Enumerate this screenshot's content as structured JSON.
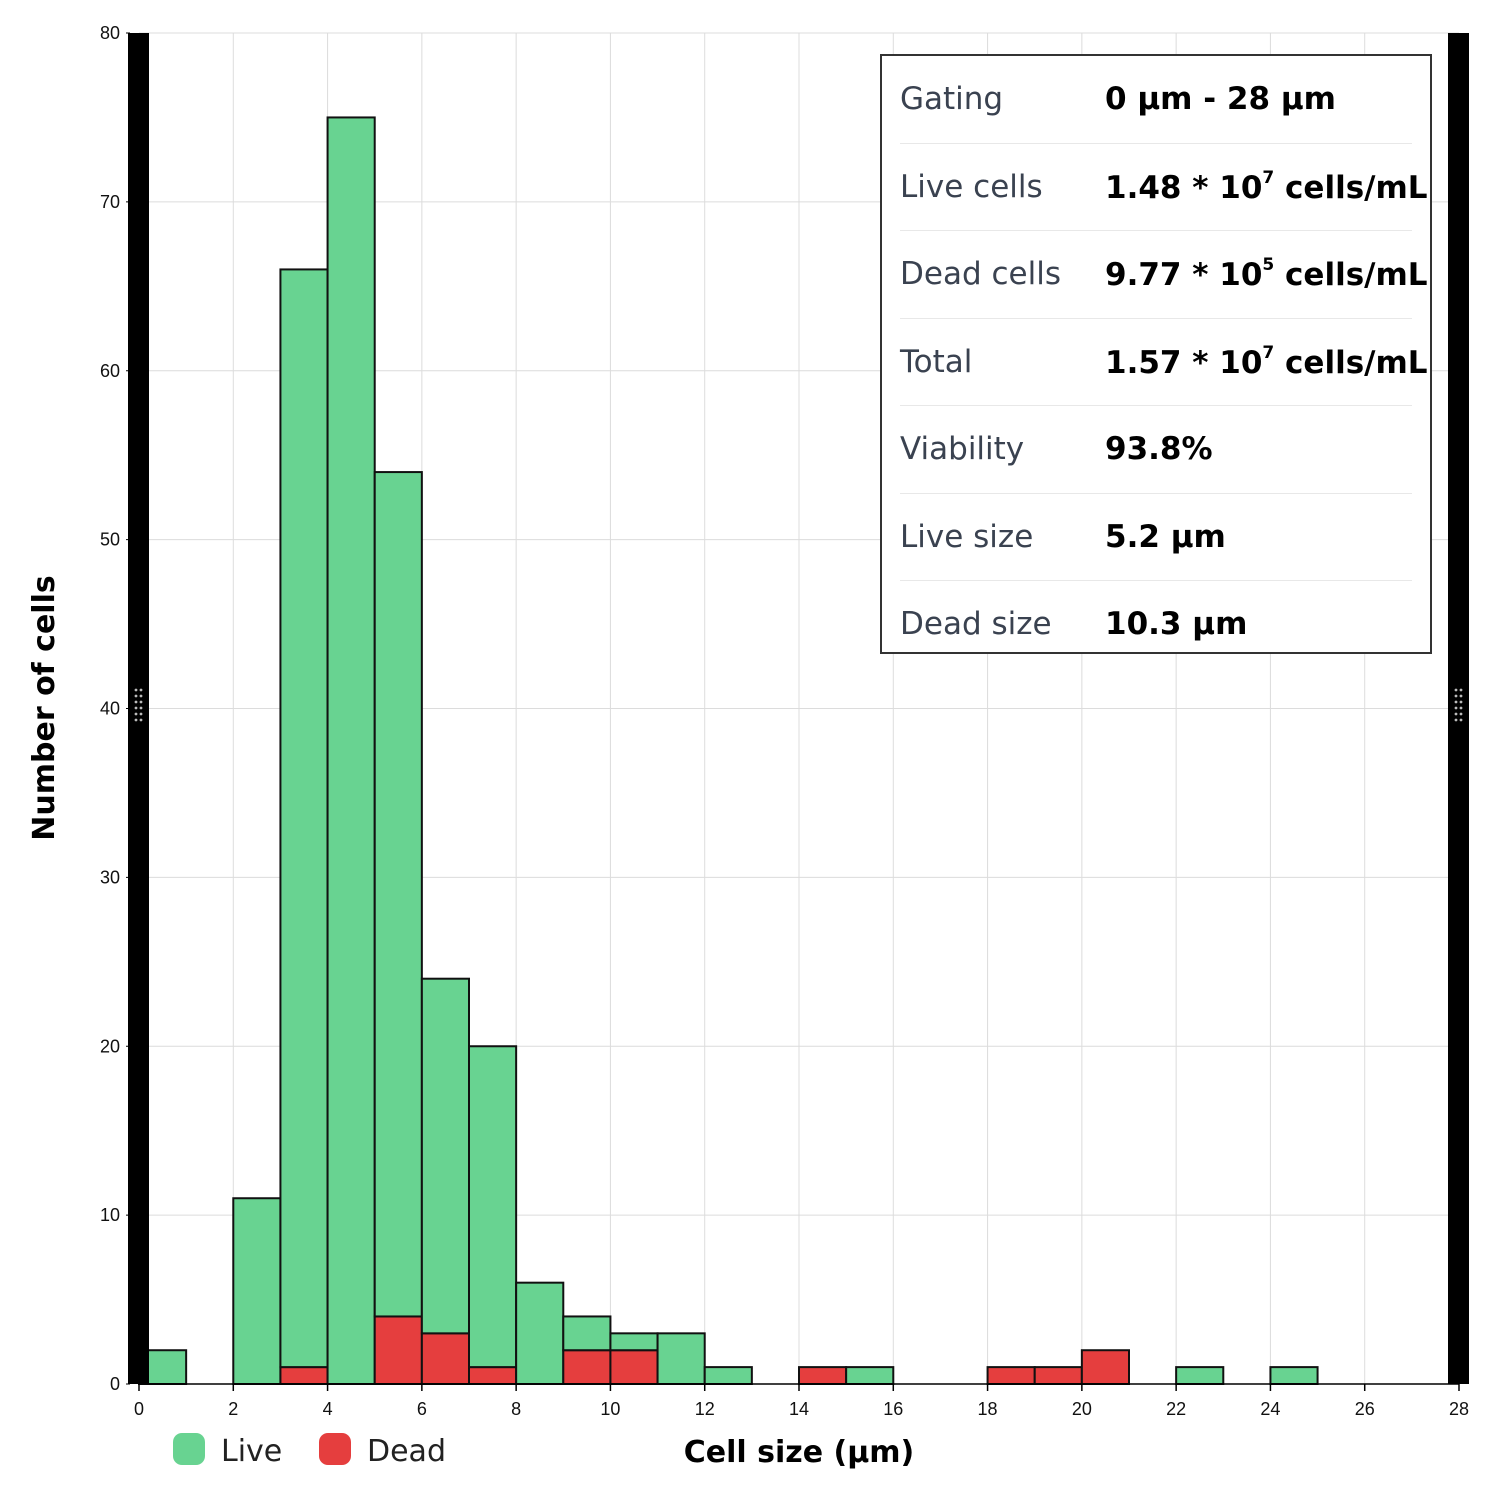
{
  "chart_data": {
    "type": "bar",
    "subtype": "stacked-histogram",
    "xlabel": "Cell size (µm)",
    "ylabel": "Number of cells",
    "xlim": [
      0,
      28
    ],
    "ylim": [
      0,
      80
    ],
    "x_ticks": [
      0,
      2,
      4,
      6,
      8,
      10,
      12,
      14,
      16,
      18,
      20,
      22,
      24,
      26,
      28
    ],
    "y_ticks": [
      0,
      10,
      20,
      30,
      40,
      50,
      60,
      70,
      80
    ],
    "grid": true,
    "bin_width": 1,
    "bins": [
      {
        "start": 0,
        "live": 2,
        "dead": 0
      },
      {
        "start": 1,
        "live": 0,
        "dead": 0
      },
      {
        "start": 2,
        "live": 11,
        "dead": 0
      },
      {
        "start": 3,
        "live": 65,
        "dead": 1
      },
      {
        "start": 4,
        "live": 75,
        "dead": 0
      },
      {
        "start": 5,
        "live": 50,
        "dead": 4
      },
      {
        "start": 6,
        "live": 21,
        "dead": 3
      },
      {
        "start": 7,
        "live": 19,
        "dead": 1
      },
      {
        "start": 8,
        "live": 6,
        "dead": 0
      },
      {
        "start": 9,
        "live": 2,
        "dead": 2
      },
      {
        "start": 10,
        "live": 1,
        "dead": 2
      },
      {
        "start": 11,
        "live": 3,
        "dead": 0
      },
      {
        "start": 12,
        "live": 1,
        "dead": 0
      },
      {
        "start": 13,
        "live": 0,
        "dead": 0
      },
      {
        "start": 14,
        "live": 0,
        "dead": 1
      },
      {
        "start": 15,
        "live": 1,
        "dead": 0
      },
      {
        "start": 16,
        "live": 0,
        "dead": 0
      },
      {
        "start": 17,
        "live": 0,
        "dead": 0
      },
      {
        "start": 18,
        "live": 0,
        "dead": 1
      },
      {
        "start": 19,
        "live": 0,
        "dead": 1
      },
      {
        "start": 20,
        "live": 0,
        "dead": 2
      },
      {
        "start": 21,
        "live": 0,
        "dead": 0
      },
      {
        "start": 22,
        "live": 1,
        "dead": 0
      },
      {
        "start": 23,
        "live": 0,
        "dead": 0
      },
      {
        "start": 24,
        "live": 1,
        "dead": 0
      }
    ],
    "series": [
      {
        "name": "Live",
        "color": "#68d391"
      },
      {
        "name": "Dead",
        "color": "#e53e3e"
      }
    ],
    "legend": {
      "position": "bottom-left",
      "items": [
        "Live",
        "Dead"
      ]
    }
  },
  "stats": {
    "rows": [
      {
        "label": "Gating",
        "value": "0 µm - 28 µm"
      },
      {
        "label": "Live cells",
        "mantissa": "1.48 * 10",
        "exp": "7",
        "unit": " cells/mL"
      },
      {
        "label": "Dead cells",
        "mantissa": "9.77 * 10",
        "exp": "5",
        "unit": " cells/mL"
      },
      {
        "label": "Total",
        "mantissa": "1.57 * 10",
        "exp": "7",
        "unit": " cells/mL"
      },
      {
        "label": "Viability",
        "value": "93.8%"
      },
      {
        "label": "Live size",
        "value": "5.2 µm"
      },
      {
        "label": "Dead size",
        "value": "10.3 µm"
      }
    ]
  }
}
